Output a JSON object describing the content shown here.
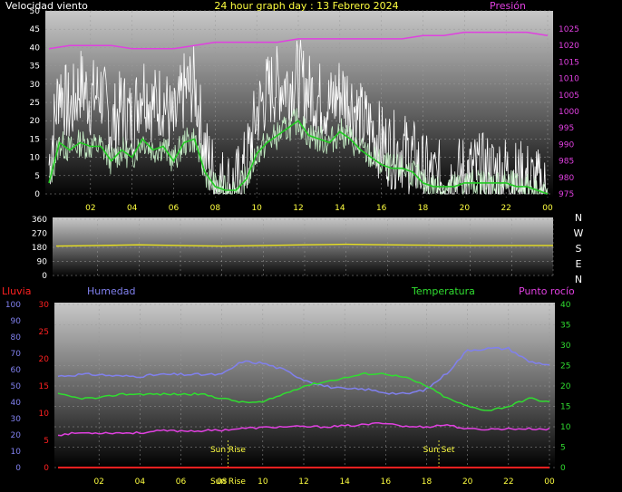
{
  "header": {
    "left_title": "Velocidad viento",
    "center_title": "24 hour graph day : 13 Febrero 2024",
    "right_title": "Presión"
  },
  "colors": {
    "wind_speed": "#ffffff",
    "wind_avg": "#22cc22",
    "pressure": "#e040e0",
    "direction": "#e8e020",
    "humidity": "#8080ee",
    "temperature": "#30dd30",
    "dewpoint": "#e040e0",
    "rain": "#ff2020",
    "label_yellow": "#ffff40"
  },
  "compass": [
    "N",
    "W",
    "S",
    "E",
    "N"
  ],
  "bottom_titles": {
    "rain": "Lluvia",
    "humidity": "Humedad",
    "temperature": "Temperatura",
    "dewpoint": "Punto rocío"
  },
  "events": {
    "sunrise_label": "Sun Rise",
    "sunset_label": "Sun Set",
    "overlap_label": "Sun Rise",
    "sunrise_hour": 8.3,
    "sunset_hour": 18.6
  },
  "chart_data": [
    {
      "type": "line",
      "id": "wind",
      "title": "Velocidad viento",
      "x_ticks": [
        "02",
        "04",
        "06",
        "08",
        "10",
        "12",
        "14",
        "16",
        "18",
        "20",
        "22",
        "00"
      ],
      "xlim": [
        0,
        24
      ],
      "ylim_left": [
        0,
        50
      ],
      "yticks_left": [
        0,
        5,
        10,
        15,
        20,
        25,
        30,
        35,
        40,
        45,
        50
      ],
      "ylim_right": [
        975,
        1025
      ],
      "yticks_right": [
        975,
        980,
        985,
        990,
        995,
        1000,
        1005,
        1010,
        1015,
        1020,
        1025
      ],
      "series": [
        {
          "name": "Presión",
          "axis": "right",
          "x": [
            0,
            1,
            2,
            3,
            4,
            5,
            6,
            7,
            8,
            9,
            10,
            11,
            12,
            13,
            14,
            15,
            16,
            17,
            18,
            19,
            20,
            21,
            22,
            23,
            24
          ],
          "values": [
            1019,
            1020,
            1020,
            1020,
            1019,
            1019,
            1019,
            1020,
            1021,
            1021,
            1021,
            1021,
            1022,
            1022,
            1022,
            1022,
            1022,
            1022,
            1023,
            1023,
            1024,
            1024,
            1024,
            1024,
            1023
          ]
        },
        {
          "x": [
            0,
            0.5,
            1,
            1.5,
            2,
            2.5,
            3,
            3.5,
            4,
            4.5,
            5,
            5.5,
            6,
            6.5,
            7,
            7.5,
            8,
            8.5,
            9,
            9.5,
            10,
            10.5,
            11,
            11.5,
            12,
            12.5,
            13,
            13.5,
            14,
            14.5,
            15,
            15.5,
            16,
            16.5,
            17,
            17.5,
            18,
            18.5,
            19,
            19.5,
            20,
            20.5,
            21,
            21.5,
            22,
            22.5,
            23,
            23.5,
            24
          ],
          "values": [
            8,
            30,
            22,
            30,
            26,
            28,
            18,
            24,
            20,
            30,
            24,
            26,
            18,
            28,
            30,
            12,
            4,
            2,
            2,
            8,
            22,
            28,
            30,
            30,
            32,
            28,
            26,
            24,
            28,
            26,
            20,
            18,
            14,
            12,
            12,
            10,
            6,
            4,
            4,
            4,
            6,
            6,
            6,
            6,
            6,
            4,
            4,
            2,
            0
          ]
        },
        {
          "x": [
            0,
            0.5,
            1,
            1.5,
            2,
            2.5,
            3,
            3.5,
            4,
            4.5,
            5,
            5.5,
            6,
            6.5,
            7,
            7.5,
            8,
            8.5,
            9,
            9.5,
            10,
            10.5,
            11,
            11.5,
            12,
            12.5,
            13,
            13.5,
            14,
            14.5,
            15,
            15.5,
            16,
            16.5,
            17,
            17.5,
            18,
            18.5,
            19,
            19.5,
            20,
            20.5,
            21,
            21.5,
            22,
            22.5,
            23,
            23.5,
            24
          ],
          "values": [
            3,
            14,
            12,
            14,
            13,
            13,
            9,
            12,
            10,
            15,
            12,
            13,
            9,
            14,
            15,
            6,
            2,
            1,
            1,
            4,
            11,
            14,
            16,
            18,
            20,
            16,
            15,
            14,
            17,
            15,
            12,
            10,
            8,
            7,
            7,
            6,
            3,
            2,
            2,
            2,
            3,
            3,
            3,
            3,
            3,
            2,
            2,
            1,
            0
          ]
        }
      ]
    },
    {
      "type": "line",
      "id": "direction",
      "x_ticks": [],
      "xlim": [
        0,
        24
      ],
      "ylim": [
        0,
        360
      ],
      "yticks": [
        0,
        90,
        180,
        270,
        360
      ],
      "series": [
        {
          "x": [
            0,
            1,
            2,
            3,
            4,
            5,
            6,
            7,
            8,
            9,
            10,
            11,
            12,
            13,
            14,
            15,
            16,
            17,
            18,
            19,
            20,
            21,
            22,
            23,
            24
          ],
          "values": [
            188,
            190,
            192,
            194,
            196,
            194,
            192,
            190,
            188,
            190,
            192,
            194,
            196,
            198,
            200,
            198,
            196,
            195,
            194,
            193,
            192,
            192,
            192,
            192,
            192
          ]
        }
      ]
    },
    {
      "type": "line",
      "id": "temp_hum",
      "x_ticks": [
        "02",
        "04",
        "06",
        "08",
        "10",
        "12",
        "14",
        "16",
        "18",
        "20",
        "22",
        "00"
      ],
      "xlim": [
        0,
        24
      ],
      "ylim_far_left": [
        0,
        100
      ],
      "yticks_far_left": [
        0,
        10,
        20,
        30,
        40,
        50,
        60,
        70,
        80,
        90,
        100
      ],
      "ylim_left": [
        0,
        30
      ],
      "yticks_left": [
        0,
        5,
        10,
        15,
        20,
        25,
        30
      ],
      "ylim_right": [
        0,
        40
      ],
      "yticks_right": [
        0,
        5,
        10,
        15,
        20,
        25,
        30,
        35,
        40
      ],
      "series": [
        {
          "name": "Humedad",
          "axis": "far_left",
          "x": [
            0,
            1,
            2,
            3,
            4,
            5,
            6,
            7,
            8,
            9,
            10,
            11,
            12,
            13,
            14,
            15,
            16,
            17,
            18,
            19,
            20,
            21,
            22,
            23,
            24
          ],
          "values": [
            56,
            57,
            57,
            56,
            56,
            57,
            57,
            57,
            57,
            65,
            64,
            60,
            54,
            50,
            48,
            48,
            46,
            45,
            48,
            58,
            72,
            73,
            73,
            65,
            63
          ]
        },
        {
          "name": "Temperatura",
          "axis": "right",
          "x": [
            0,
            1,
            2,
            3,
            4,
            5,
            6,
            7,
            8,
            9,
            10,
            11,
            12,
            13,
            14,
            15,
            16,
            17,
            18,
            19,
            20,
            21,
            22,
            23,
            24
          ],
          "values": [
            18,
            17,
            17,
            18,
            18,
            18,
            18,
            18,
            17,
            16,
            16,
            18,
            20,
            21,
            22,
            23,
            23,
            22,
            20,
            17,
            15,
            14,
            15,
            17,
            16
          ]
        },
        {
          "name": "Punto rocío",
          "axis": "right",
          "x": [
            0,
            1,
            2,
            3,
            4,
            5,
            6,
            7,
            8,
            9,
            10,
            11,
            12,
            13,
            14,
            15,
            16,
            17,
            18,
            19,
            20,
            21,
            22,
            23,
            24
          ],
          "values": [
            8,
            8.5,
            8.5,
            8.5,
            8.5,
            9,
            9,
            9,
            9.2,
            9.6,
            9.8,
            10,
            10,
            10,
            10.2,
            10.5,
            11,
            10,
            10,
            10.5,
            9.4,
            9.4,
            9.5,
            9.5,
            9.4
          ]
        },
        {
          "name": "Lluvia",
          "axis": "left",
          "x": [
            0,
            24
          ],
          "values": [
            0,
            0
          ]
        }
      ]
    }
  ]
}
